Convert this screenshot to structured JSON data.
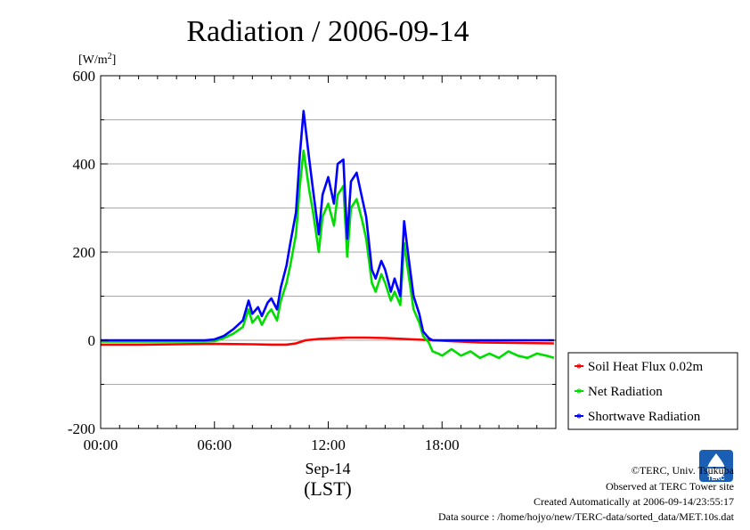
{
  "chart_data": {
    "type": "line",
    "title": "Radiation / 2006-09-14",
    "ylabel_unit": "[W/m",
    "ylabel_sup": "2",
    "ylabel_close": "]",
    "xlabel_date": "Sep-14",
    "xlabel_tz": "(LST)",
    "xlim": [
      0,
      24
    ],
    "ylim": [
      -200,
      600
    ],
    "yticks": [
      -200,
      0,
      200,
      400,
      600
    ],
    "ytick_labels": [
      "-200",
      "0",
      "200",
      "400",
      "600"
    ],
    "xticks": [
      0,
      6,
      12,
      18
    ],
    "xtick_labels": [
      "00:00",
      "06:00",
      "12:00",
      "18:00"
    ],
    "grid": "horizontal",
    "legend_position": "right",
    "series": [
      {
        "name": "Soil Heat Flux 0.02m",
        "color": "#ff0000",
        "x": [
          0,
          2,
          4,
          6,
          8,
          9,
          9.8,
          10.3,
          10.8,
          11.5,
          12,
          13,
          14,
          15,
          16,
          17,
          18,
          19,
          20,
          22,
          23.9
        ],
        "y": [
          -10,
          -10,
          -9,
          -8,
          -9,
          -10,
          -10,
          -7,
          0,
          3,
          4,
          6,
          6,
          5,
          3,
          1,
          -1,
          -3,
          -5,
          -6,
          -7
        ]
      },
      {
        "name": "Net Radiation",
        "color": "#00dd00",
        "x": [
          0,
          2,
          4,
          5.5,
          6,
          6.5,
          7,
          7.5,
          7.8,
          8,
          8.3,
          8.5,
          8.8,
          9,
          9.3,
          9.5,
          9.8,
          10,
          10.3,
          10.5,
          10.7,
          11,
          11.2,
          11.5,
          11.7,
          12,
          12.3,
          12.5,
          12.8,
          13,
          13.2,
          13.5,
          13.8,
          14,
          14.3,
          14.5,
          14.8,
          15,
          15.3,
          15.5,
          15.8,
          16,
          16.2,
          16.5,
          16.8,
          17,
          17.3,
          17.5,
          17.8,
          18,
          18.5,
          19,
          19.5,
          20,
          20.5,
          21,
          21.5,
          22,
          22.5,
          23,
          23.5,
          23.9
        ],
        "y": [
          -3,
          -3,
          -3,
          -3,
          -2,
          5,
          15,
          30,
          70,
          40,
          55,
          35,
          60,
          70,
          45,
          90,
          130,
          170,
          240,
          350,
          430,
          340,
          290,
          200,
          280,
          310,
          260,
          330,
          350,
          190,
          300,
          320,
          270,
          230,
          130,
          110,
          150,
          130,
          90,
          110,
          80,
          220,
          160,
          70,
          40,
          10,
          -5,
          -25,
          -30,
          -35,
          -20,
          -35,
          -25,
          -40,
          -30,
          -40,
          -25,
          -35,
          -40,
          -30,
          -35,
          -40
        ]
      },
      {
        "name": "Shortwave Radiation",
        "color": "#0000ff",
        "x": [
          0,
          2,
          4,
          5.5,
          6,
          6.5,
          7,
          7.5,
          7.8,
          8,
          8.3,
          8.5,
          8.8,
          9,
          9.3,
          9.5,
          9.8,
          10,
          10.3,
          10.5,
          10.7,
          11,
          11.2,
          11.5,
          11.7,
          12,
          12.3,
          12.5,
          12.8,
          13,
          13.2,
          13.5,
          13.8,
          14,
          14.3,
          14.5,
          14.8,
          15,
          15.3,
          15.5,
          15.8,
          16,
          16.2,
          16.5,
          16.8,
          17,
          17.3,
          17.5,
          17.8,
          18,
          19,
          20,
          21,
          22,
          23,
          23.9
        ],
        "y": [
          0,
          0,
          0,
          0,
          2,
          10,
          25,
          45,
          90,
          60,
          75,
          55,
          85,
          95,
          70,
          120,
          170,
          220,
          290,
          420,
          520,
          410,
          340,
          240,
          330,
          370,
          310,
          400,
          410,
          230,
          360,
          380,
          320,
          280,
          160,
          140,
          180,
          160,
          110,
          140,
          100,
          270,
          200,
          100,
          60,
          20,
          5,
          0,
          0,
          0,
          0,
          0,
          0,
          0,
          0,
          0
        ]
      }
    ]
  },
  "footer": {
    "copyright": "©TERC, Univ. Tsukuba",
    "observed": "Observed at TERC Tower site",
    "created": "Created Automatically at 2006-09-14/23:55:17",
    "source": "Data source : /home/hojyo/new/TERC-data/sorted_data/MET.10s.dat",
    "logo_text": "TERC"
  }
}
